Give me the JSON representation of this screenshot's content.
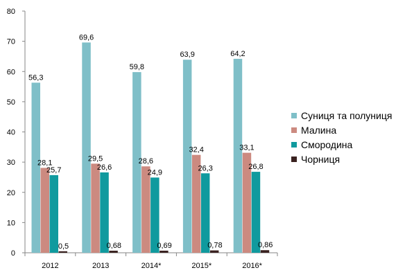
{
  "chart_data": {
    "type": "bar",
    "categories": [
      "2012",
      "2013",
      "2014*",
      "2015*",
      "2016*"
    ],
    "series": [
      {
        "name": "Суниця та полуниця",
        "color": "#7fbfc8",
        "values": [
          56.3,
          69.6,
          59.8,
          63.9,
          64.2
        ],
        "labels": [
          "56,3",
          "69,6",
          "59,8",
          "63,9",
          "64,2"
        ]
      },
      {
        "name": "Малина",
        "color": "#cc8a80",
        "values": [
          28.1,
          29.5,
          28.6,
          32.4,
          33.1
        ],
        "labels": [
          "28,1",
          "29,5",
          "28,6",
          "32,4",
          "33,1"
        ]
      },
      {
        "name": "Смородина",
        "color": "#109a9e",
        "values": [
          25.7,
          26.6,
          24.9,
          26.3,
          26.8
        ],
        "labels": [
          "25,7",
          "26,6",
          "24,9",
          "26,3",
          "26,8"
        ]
      },
      {
        "name": "Чорниця",
        "color": "#3a2220",
        "values": [
          0.5,
          0.68,
          0.69,
          0.78,
          0.86
        ],
        "labels": [
          "0,5",
          "0,68",
          "0,69",
          "0,78",
          "0,86"
        ]
      }
    ],
    "ylim": [
      0,
      80
    ],
    "yticks": [
      0,
      10,
      20,
      30,
      40,
      50,
      60,
      70,
      80
    ],
    "grid": false,
    "legend": "right"
  }
}
